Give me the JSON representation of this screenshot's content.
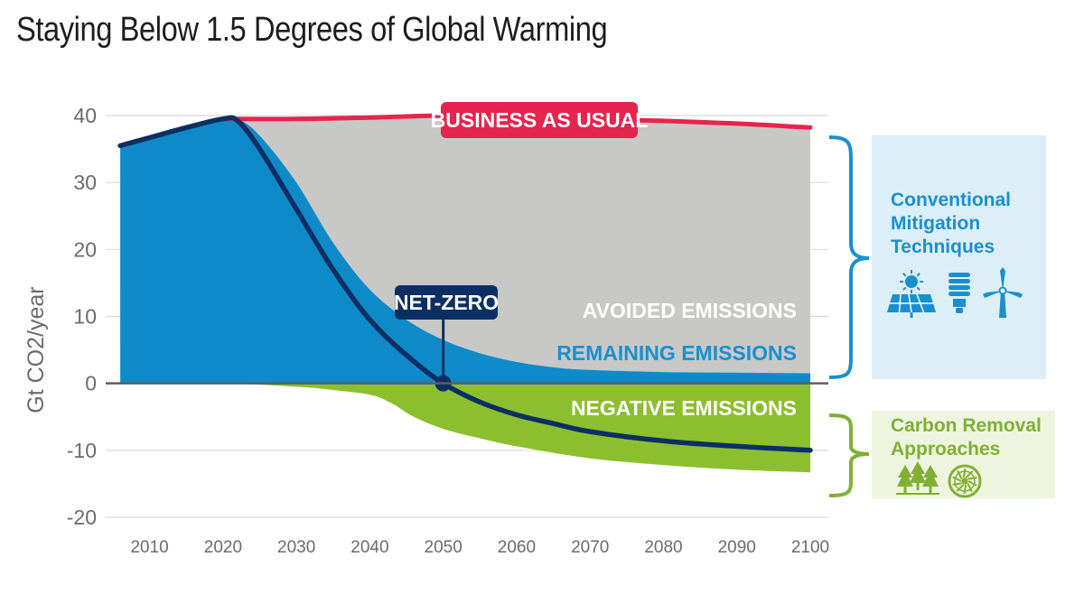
{
  "page": {
    "title": "Staying Below 1.5 Degrees of Global Warming"
  },
  "colors": {
    "remaining": "#0f8ac8",
    "avoided": "#c8c8c6",
    "negative": "#8cbf2f",
    "business_line": "#e4254d",
    "net_line": "#0c2f63",
    "conventional_bg": "#dceff9",
    "conventional_text": "#1a8fd0",
    "carbon_bg": "#eef5df",
    "carbon_text": "#7fb033"
  },
  "chart_data": {
    "type": "area",
    "title": "Staying Below 1.5 Degrees of Global Warming",
    "xlabel": "",
    "ylabel": "Gt CO2/year",
    "xlim": [
      2005,
      2100
    ],
    "ylim": [
      -20,
      40
    ],
    "x_ticks": [
      2010,
      2020,
      2030,
      2040,
      2050,
      2060,
      2070,
      2080,
      2090,
      2100
    ],
    "y_ticks": [
      40,
      30,
      20,
      10,
      0,
      -10,
      -20
    ],
    "grid": true,
    "series": [
      {
        "name": "BUSINESS AS USUAL",
        "x": [
          2020,
          2030,
          2040,
          2050,
          2060,
          2070,
          2080,
          2090,
          2100
        ],
        "values": [
          39.5,
          39.5,
          39.7,
          40,
          39.8,
          39.5,
          39.2,
          38.8,
          38.2
        ]
      },
      {
        "name": "REMAINING EMISSIONS",
        "x": [
          2006,
          2010,
          2015,
          2020,
          2022,
          2025,
          2030,
          2035,
          2040,
          2045,
          2050,
          2055,
          2060,
          2065,
          2070,
          2080,
          2090,
          2100
        ],
        "values": [
          35.5,
          36.7,
          38.2,
          39.5,
          39.5,
          37,
          30,
          21,
          14,
          9.5,
          6.5,
          4.5,
          3.2,
          2.4,
          2,
          1.7,
          1.6,
          1.5
        ]
      },
      {
        "name": "NEGATIVE EMISSIONS",
        "x": [
          2006,
          2020,
          2030,
          2035,
          2040,
          2043,
          2046,
          2050,
          2055,
          2060,
          2070,
          2080,
          2090,
          2100
        ],
        "values": [
          0,
          0,
          -0.5,
          -1,
          -1.7,
          -3,
          -5,
          -6.8,
          -8.2,
          -9.4,
          -11.2,
          -12.2,
          -12.9,
          -13.3
        ]
      },
      {
        "name": "NET-ZERO",
        "x": [
          2006,
          2010,
          2015,
          2020,
          2022,
          2025,
          2030,
          2035,
          2040,
          2045,
          2050,
          2055,
          2060,
          2065,
          2070,
          2080,
          2090,
          2100
        ],
        "values": [
          35.5,
          36.7,
          38.2,
          39.5,
          39.2,
          35,
          26,
          17,
          9.5,
          4.2,
          0,
          -2.8,
          -4.7,
          -6,
          -7.2,
          -8.6,
          -9.4,
          -10
        ]
      }
    ],
    "labels": {
      "business": "BUSINESS AS USUAL",
      "net_zero": "NET-ZERO",
      "avoided": "AVOIDED EMISSIONS",
      "remaining": "REMAINING EMISSIONS",
      "negative": "NEGATIVE EMISSIONS"
    },
    "net_zero_year": 2050
  },
  "side_panels": {
    "conventional": {
      "lines": [
        "Conventional",
        "Mitigation",
        "Techniques"
      ],
      "icons": [
        "solar-panel-icon",
        "light-bulb-icon",
        "wind-turbine-icon"
      ]
    },
    "carbon": {
      "lines": [
        "Carbon Removal",
        "Approaches"
      ],
      "icons": [
        "trees-icon",
        "carbon-capture-fan-icon"
      ]
    }
  }
}
